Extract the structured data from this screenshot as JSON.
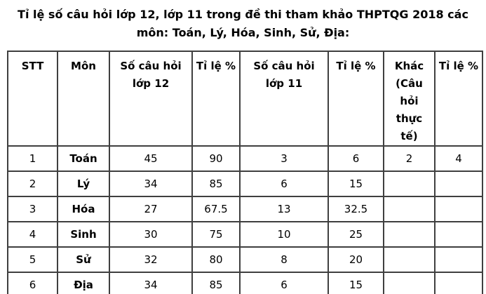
{
  "title": "Tỉ lệ số câu hỏi lớp 12, lớp 11 trong đề thi tham khảo THPTQG 2018 các môn: Toán, Lý, Hóa, Sinh, Sử, Địa:",
  "table": {
    "columns": [
      "STT",
      "Môn",
      "Số câu hỏi lớp 12",
      "Tỉ lệ %",
      "Số câu hỏi lớp 11",
      "Tỉ lệ %",
      "Khác (Câu hỏi thực tế)",
      "Tỉ lệ %"
    ],
    "rows": [
      [
        "1",
        "Toán",
        "45",
        "90",
        "3",
        "6",
        "2",
        "4"
      ],
      [
        "2",
        "Lý",
        "34",
        "85",
        "6",
        "15",
        "",
        ""
      ],
      [
        "3",
        "Hóa",
        "27",
        "67.5",
        "13",
        "32.5",
        "",
        ""
      ],
      [
        "4",
        "Sinh",
        "30",
        "75",
        "10",
        "25",
        "",
        ""
      ],
      [
        "5",
        "Sử",
        "32",
        "80",
        "8",
        "20",
        "",
        ""
      ],
      [
        "6",
        "Địa",
        "34",
        "85",
        "6",
        "15",
        "",
        ""
      ]
    ]
  },
  "colors": {
    "text": "#000000",
    "border": "#3f3f3f",
    "background": "#ffffff"
  }
}
